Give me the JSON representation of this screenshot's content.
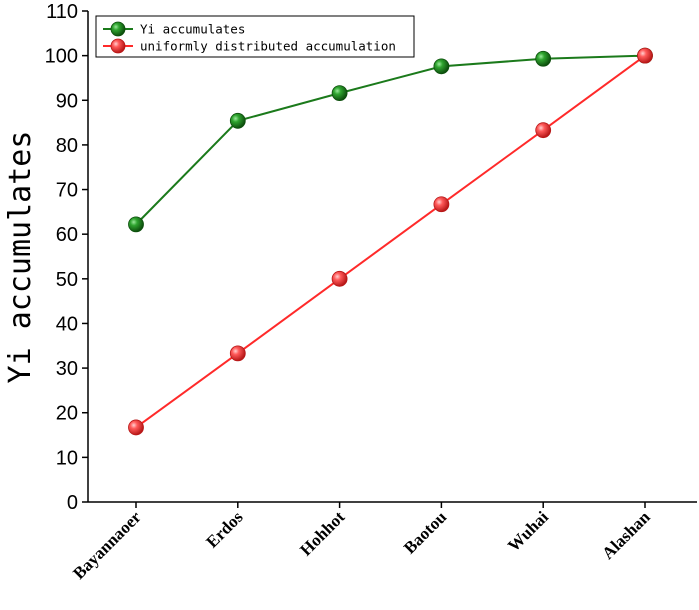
{
  "chart_data": {
    "type": "line",
    "ylabel": "Yi accumulates",
    "xlabel": "",
    "categories": [
      "Bayannaoer",
      "Erdos",
      "Hohhot",
      "Baotou",
      "Wuhai",
      "Alashan"
    ],
    "ylim": [
      0,
      110
    ],
    "yticks": [
      0,
      10,
      20,
      30,
      40,
      50,
      60,
      70,
      80,
      90,
      100,
      110
    ],
    "grid": false,
    "legend_position": "top-left",
    "series": [
      {
        "name": "Yi accumulates",
        "values": [
          62.2,
          85.4,
          91.6,
          97.6,
          99.3,
          100
        ],
        "color": "#1b7a1b"
      },
      {
        "name": "uniformly distributed accumulation",
        "values": [
          16.7,
          33.3,
          50.0,
          66.7,
          83.3,
          100
        ],
        "color": "#ff2a2a"
      }
    ]
  }
}
